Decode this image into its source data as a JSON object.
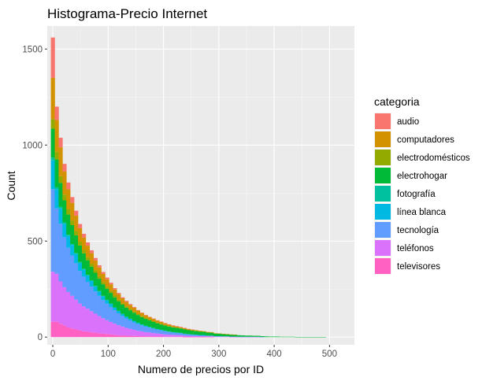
{
  "chart_data": {
    "type": "histogram",
    "stacked": true,
    "title": "Histograma-Precio Internet",
    "xlabel": "Numero de precios por ID",
    "ylabel": "Count",
    "xlim": [
      -10,
      545
    ],
    "ylim": [
      -40,
      1620
    ],
    "x_ticks": [
      0,
      100,
      200,
      300,
      400,
      500
    ],
    "y_ticks": [
      0,
      500,
      1000,
      1500
    ],
    "bin_start": -3.5,
    "bin_width": 7,
    "grid": true,
    "legend_position": "right",
    "legend": {
      "title": "categoria",
      "items": [
        {
          "label": "audio",
          "color": "#F8766D"
        },
        {
          "label": "computadores",
          "color": "#D39200"
        },
        {
          "label": "electrodomésticos",
          "color": "#93AA00"
        },
        {
          "label": "electrohogar",
          "color": "#00BA38"
        },
        {
          "label": "fotografía",
          "color": "#00C19F"
        },
        {
          "label": "línea blanca",
          "color": "#00B9E3"
        },
        {
          "label": "tecnología",
          "color": "#619CFF"
        },
        {
          "label": "teléfonos",
          "color": "#DB72FB"
        },
        {
          "label": "televisores",
          "color": "#FF61C3"
        }
      ]
    },
    "series": [
      {
        "name": "televisores",
        "values": [
          80,
          80,
          70,
          60,
          50,
          45,
          40,
          35,
          30,
          28,
          25,
          22,
          20,
          18,
          16,
          14,
          12,
          10,
          9,
          8,
          7,
          6,
          5,
          5,
          4,
          4,
          3,
          3,
          3,
          2,
          2,
          2,
          2,
          2,
          1,
          1,
          1,
          1,
          1,
          1,
          1,
          1,
          0,
          0,
          0,
          0,
          0,
          0,
          0,
          0,
          0,
          0,
          0,
          0,
          0,
          0,
          0,
          0,
          0,
          0,
          0,
          0,
          0,
          0,
          0,
          0,
          0,
          0,
          0,
          0,
          0
        ]
      },
      {
        "name": "teléfonos",
        "values": [
          260,
          250,
          220,
          200,
          185,
          170,
          155,
          140,
          130,
          120,
          110,
          100,
          90,
          80,
          72,
          65,
          58,
          52,
          46,
          40,
          36,
          32,
          28,
          25,
          22,
          20,
          18,
          16,
          14,
          12,
          11,
          10,
          9,
          8,
          7,
          6,
          5,
          5,
          4,
          4,
          3,
          3,
          2,
          2,
          2,
          2,
          1,
          1,
          1,
          1,
          1,
          1,
          1,
          1,
          0,
          0,
          0,
          0,
          0,
          0,
          0,
          0,
          0,
          0,
          0,
          0,
          0,
          0,
          0,
          0,
          0
        ]
      },
      {
        "name": "tecnología",
        "values": [
          430,
          340,
          300,
          260,
          230,
          210,
          190,
          170,
          155,
          140,
          128,
          116,
          105,
          95,
          86,
          78,
          70,
          62,
          55,
          49,
          44,
          39,
          35,
          31,
          28,
          25,
          22,
          20,
          18,
          16,
          14,
          12,
          11,
          10,
          9,
          8,
          7,
          6,
          5,
          5,
          4,
          4,
          3,
          3,
          2,
          2,
          2,
          2,
          1,
          1,
          1,
          1,
          1,
          1,
          1,
          0,
          0,
          0,
          0,
          0,
          0,
          0,
          0,
          0,
          0,
          0,
          0,
          0,
          0,
          0,
          0
        ]
      },
      {
        "name": "línea blanca",
        "values": [
          150,
          100,
          80,
          70,
          62,
          55,
          48,
          42,
          37,
          33,
          29,
          26,
          23,
          20,
          18,
          16,
          14,
          12,
          10,
          9,
          8,
          7,
          6,
          5,
          5,
          4,
          4,
          3,
          3,
          3,
          2,
          2,
          2,
          2,
          1,
          1,
          1,
          1,
          1,
          1,
          0,
          0,
          0,
          0,
          0,
          0,
          0,
          0,
          0,
          0,
          0,
          0,
          0,
          0,
          0,
          0,
          0,
          0,
          0,
          0,
          0,
          0,
          0,
          0,
          0,
          0,
          0,
          0,
          0,
          0,
          0
        ]
      },
      {
        "name": "fotografía",
        "values": [
          15,
          10,
          8,
          7,
          6,
          5,
          5,
          4,
          4,
          3,
          3,
          3,
          2,
          2,
          2,
          2,
          1,
          1,
          1,
          1,
          1,
          1,
          1,
          0,
          0,
          0,
          0,
          0,
          0,
          0,
          0,
          0,
          0,
          0,
          0,
          0,
          0,
          0,
          0,
          0,
          0,
          0,
          0,
          0,
          0,
          0,
          0,
          0,
          0,
          0,
          0,
          0,
          0,
          0,
          0,
          0,
          0,
          0,
          0,
          0,
          0,
          0,
          0,
          0,
          0,
          0,
          0,
          0,
          0,
          0,
          0
        ]
      },
      {
        "name": "electrohogar",
        "values": [
          150,
          145,
          125,
          115,
          105,
          98,
          92,
          86,
          80,
          76,
          72,
          68,
          64,
          60,
          58,
          55,
          52,
          50,
          48,
          46,
          44,
          42,
          40,
          38,
          36,
          34,
          32,
          30,
          28,
          27,
          26,
          25,
          24,
          23,
          22,
          21,
          20,
          19,
          18,
          17,
          16,
          15,
          14,
          13,
          12,
          11,
          10,
          9,
          8,
          7,
          6,
          6,
          5,
          5,
          4,
          4,
          3,
          3,
          3,
          2,
          2,
          2,
          2,
          1,
          1,
          1,
          1,
          1,
          1,
          1,
          1
        ]
      },
      {
        "name": "electrodomésticos",
        "values": [
          50,
          40,
          35,
          30,
          27,
          24,
          22,
          20,
          18,
          16,
          15,
          14,
          13,
          12,
          11,
          10,
          9,
          8,
          7,
          7,
          6,
          6,
          5,
          5,
          4,
          4,
          4,
          3,
          3,
          3,
          3,
          2,
          2,
          2,
          2,
          1,
          1,
          1,
          1,
          1,
          1,
          1,
          0,
          0,
          0,
          0,
          0,
          0,
          0,
          0,
          0,
          0,
          0,
          0,
          0,
          0,
          0,
          0,
          0,
          0,
          0,
          0,
          0,
          0,
          0,
          0,
          0,
          0,
          0,
          0,
          0
        ]
      },
      {
        "name": "computadores",
        "values": [
          215,
          165,
          150,
          120,
          105,
          92,
          80,
          70,
          65,
          60,
          55,
          50,
          46,
          42,
          38,
          35,
          32,
          29,
          26,
          24,
          22,
          20,
          18,
          16,
          14,
          13,
          12,
          11,
          10,
          9,
          8,
          7,
          6,
          5,
          5,
          4,
          4,
          3,
          3,
          2,
          2,
          2,
          1,
          1,
          1,
          1,
          1,
          1,
          0,
          0,
          0,
          0,
          0,
          0,
          0,
          0,
          0,
          0,
          0,
          0,
          0,
          0,
          0,
          0,
          0,
          0,
          0,
          0,
          0,
          0,
          0
        ]
      },
      {
        "name": "audio",
        "values": [
          210,
          70,
          50,
          40,
          35,
          30,
          26,
          22,
          19,
          17,
          15,
          13,
          11,
          10,
          9,
          8,
          7,
          6,
          5,
          5,
          4,
          4,
          3,
          3,
          3,
          2,
          2,
          2,
          2,
          1,
          1,
          1,
          1,
          1,
          1,
          1,
          1,
          0,
          0,
          0,
          0,
          0,
          0,
          0,
          0,
          0,
          0,
          0,
          0,
          0,
          0,
          0,
          0,
          0,
          0,
          0,
          0,
          0,
          0,
          0,
          0,
          0,
          0,
          0,
          0,
          0,
          0,
          0,
          0,
          0,
          0
        ]
      }
    ]
  }
}
